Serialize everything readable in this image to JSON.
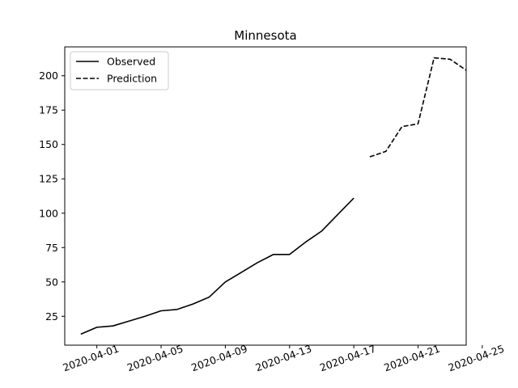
{
  "chart_data": {
    "type": "line",
    "title": "Minnesota",
    "xlabel": "",
    "ylabel": "",
    "grid": false,
    "legend_position": "top-left",
    "xlim": [
      "2020-03-30",
      "2020-04-24"
    ],
    "ylim": [
      4,
      221
    ],
    "x_ticks": [
      "2020-04-01",
      "2020-04-05",
      "2020-04-09",
      "2020-04-13",
      "2020-04-17",
      "2020-04-21",
      "2020-04-25"
    ],
    "y_ticks": [
      25,
      50,
      75,
      100,
      125,
      150,
      175,
      200
    ],
    "series": [
      {
        "name": "Observed",
        "style": "solid",
        "color": "#000000",
        "points": [
          [
            "2020-03-31",
            12
          ],
          [
            "2020-04-01",
            17
          ],
          [
            "2020-04-02",
            18
          ],
          [
            "2020-04-03",
            21.5
          ],
          [
            "2020-04-04",
            25
          ],
          [
            "2020-04-05",
            29
          ],
          [
            "2020-04-06",
            30
          ],
          [
            "2020-04-07",
            34
          ],
          [
            "2020-04-08",
            39
          ],
          [
            "2020-04-09",
            50
          ],
          [
            "2020-04-10",
            57
          ],
          [
            "2020-04-11",
            64
          ],
          [
            "2020-04-12",
            70
          ],
          [
            "2020-04-13",
            70
          ],
          [
            "2020-04-14",
            79
          ],
          [
            "2020-04-15",
            87
          ],
          [
            "2020-04-16",
            99
          ],
          [
            "2020-04-17",
            111
          ]
        ]
      },
      {
        "name": "Prediction",
        "style": "dashed",
        "color": "#000000",
        "points": [
          [
            "2020-04-18",
            141
          ],
          [
            "2020-04-19",
            145
          ],
          [
            "2020-04-20",
            163
          ],
          [
            "2020-04-21",
            165
          ],
          [
            "2020-04-22",
            213
          ],
          [
            "2020-04-23",
            212
          ],
          [
            "2020-04-24",
            204
          ]
        ]
      }
    ]
  }
}
